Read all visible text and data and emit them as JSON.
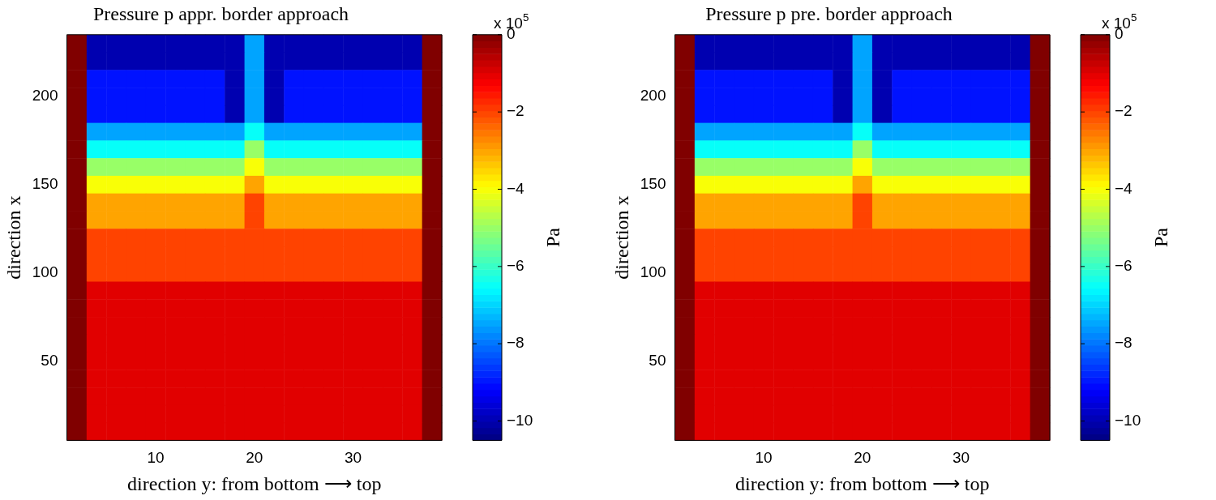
{
  "chart_data": [
    {
      "type": "heatmap",
      "title": "Pressure p appr. border approach",
      "xlabel": "direction y: from bottom ⟶ top",
      "ylabel": "direction x",
      "clabel": "Pa",
      "annotations": [
        "x 10$^{5}$"
      ],
      "categories": [
        null,
        null,
        null,
        null,
        "10",
        null,
        null,
        null,
        null,
        "20",
        null,
        null,
        null,
        null,
        "30",
        null,
        null,
        null,
        null
      ],
      "y_categories": [
        null,
        null,
        null,
        "200",
        null,
        null,
        null,
        null,
        "150",
        null,
        null,
        null,
        null,
        "100",
        null,
        null,
        null,
        null,
        "50",
        null,
        null,
        null,
        null
      ],
      "clim": [
        -10.5,
        0
      ],
      "cticks": [
        -10,
        -8,
        -6,
        -4,
        -2,
        0
      ],
      "cells": [
        [
          0,
          -10,
          -10,
          -10,
          -10,
          -10,
          -10,
          -10,
          -10,
          -7.5,
          -10,
          -10,
          -10,
          -10,
          -10,
          -10,
          -10,
          -10,
          0
        ],
        [
          0,
          -10,
          -10,
          -10,
          -10,
          -10,
          -10,
          -10,
          -10,
          -7.5,
          -10,
          -10,
          -10,
          -10,
          -10,
          -10,
          -10,
          -10,
          0
        ],
        [
          0,
          -9,
          -9,
          -9,
          -9,
          -9,
          -9,
          -9,
          -10,
          -7.5,
          -10,
          -9,
          -9,
          -9,
          -9,
          -9,
          -9,
          -9,
          0
        ],
        [
          0,
          -9,
          -9,
          -9,
          -9,
          -9,
          -9,
          -9,
          -10,
          -7.5,
          -10,
          -9,
          -9,
          -9,
          -9,
          -9,
          -9,
          -9,
          0
        ],
        [
          0,
          -9,
          -9,
          -9,
          -9,
          -9,
          -9,
          -9,
          -10,
          -7.5,
          -10,
          -9,
          -9,
          -9,
          -9,
          -9,
          -9,
          -9,
          0
        ],
        [
          0,
          -7.5,
          -7.5,
          -7.5,
          -7.5,
          -7.5,
          -7.5,
          -7.5,
          -7.5,
          -6.5,
          -7.5,
          -7.5,
          -7.5,
          -7.5,
          -7.5,
          -7.5,
          -7.5,
          -7.5,
          0
        ],
        [
          0,
          -6.5,
          -6.5,
          -6.5,
          -6.5,
          -6.5,
          -6.5,
          -6.5,
          -6.5,
          -5,
          -6.5,
          -6.5,
          -6.5,
          -6.5,
          -6.5,
          -6.5,
          -6.5,
          -6.5,
          0
        ],
        [
          0,
          -5,
          -5,
          -5,
          -5,
          -5,
          -5,
          -5,
          -5,
          -4,
          -5,
          -5,
          -5,
          -5,
          -5,
          -5,
          -5,
          -5,
          0
        ],
        [
          0,
          -4,
          -4,
          -4,
          -4,
          -4,
          -4,
          -4,
          -4,
          -3,
          -4,
          -4,
          -4,
          -4,
          -4,
          -4,
          -4,
          -4,
          0
        ],
        [
          0,
          -3,
          -3,
          -3,
          -3,
          -3,
          -3,
          -3,
          -3,
          -2,
          -3,
          -3,
          -3,
          -3,
          -3,
          -3,
          -3,
          -3,
          0
        ],
        [
          0,
          -3,
          -3,
          -3,
          -3,
          -3,
          -3,
          -3,
          -3,
          -2,
          -3,
          -3,
          -3,
          -3,
          -3,
          -3,
          -3,
          -3,
          0
        ],
        [
          0,
          -2,
          -2,
          -2,
          -2,
          -2,
          -2,
          -2,
          -2,
          -2,
          -2,
          -2,
          -2,
          -2,
          -2,
          -2,
          -2,
          -2,
          0
        ],
        [
          0,
          -2,
          -2,
          -2,
          -2,
          -2,
          -2,
          -2,
          -2,
          -2,
          -2,
          -2,
          -2,
          -2,
          -2,
          -2,
          -2,
          -2,
          0
        ],
        [
          0,
          -2,
          -2,
          -2,
          -2,
          -2,
          -2,
          -2,
          -2,
          -2,
          -2,
          -2,
          -2,
          -2,
          -2,
          -2,
          -2,
          -2,
          0
        ],
        [
          0,
          -1,
          -1,
          -1,
          -1,
          -1,
          -1,
          -1,
          -1,
          -1,
          -1,
          -1,
          -1,
          -1,
          -1,
          -1,
          -1,
          -1,
          0
        ],
        [
          0,
          -1,
          -1,
          -1,
          -1,
          -1,
          -1,
          -1,
          -1,
          -1,
          -1,
          -1,
          -1,
          -1,
          -1,
          -1,
          -1,
          -1,
          0
        ],
        [
          0,
          -1,
          -1,
          -1,
          -1,
          -1,
          -1,
          -1,
          -1,
          -1,
          -1,
          -1,
          -1,
          -1,
          -1,
          -1,
          -1,
          -1,
          0
        ],
        [
          0,
          -1,
          -1,
          -1,
          -1,
          -1,
          -1,
          -1,
          -1,
          -1,
          -1,
          -1,
          -1,
          -1,
          -1,
          -1,
          -1,
          -1,
          0
        ],
        [
          0,
          -1,
          -1,
          -1,
          -1,
          -1,
          -1,
          -1,
          -1,
          -1,
          -1,
          -1,
          -1,
          -1,
          -1,
          -1,
          -1,
          -1,
          0
        ],
        [
          0,
          -1,
          -1,
          -1,
          -1,
          -1,
          -1,
          -1,
          -1,
          -1,
          -1,
          -1,
          -1,
          -1,
          -1,
          -1,
          -1,
          -1,
          0
        ],
        [
          0,
          -1,
          -1,
          -1,
          -1,
          -1,
          -1,
          -1,
          -1,
          -1,
          -1,
          -1,
          -1,
          -1,
          -1,
          -1,
          -1,
          -1,
          0
        ],
        [
          0,
          -1,
          -1,
          -1,
          -1,
          -1,
          -1,
          -1,
          -1,
          -1,
          -1,
          -1,
          -1,
          -1,
          -1,
          -1,
          -1,
          -1,
          0
        ],
        [
          0,
          -1,
          -1,
          -1,
          -1,
          -1,
          -1,
          -1,
          -1,
          -1,
          -1,
          -1,
          -1,
          -1,
          -1,
          -1,
          -1,
          -1,
          0
        ]
      ]
    },
    {
      "type": "heatmap",
      "title": "Pressure p pre. border approach",
      "xlabel": "direction y: from bottom ⟶ top",
      "ylabel": "direction x",
      "clabel": "Pa",
      "annotations": [
        "x 10$^{5}$"
      ],
      "categories": [
        null,
        null,
        null,
        null,
        "10",
        null,
        null,
        null,
        null,
        "20",
        null,
        null,
        null,
        null,
        "30",
        null,
        null,
        null,
        null
      ],
      "y_categories": [
        null,
        null,
        null,
        "200",
        null,
        null,
        null,
        null,
        "150",
        null,
        null,
        null,
        null,
        "100",
        null,
        null,
        null,
        null,
        "50",
        null,
        null,
        null,
        null
      ],
      "clim": [
        -10.5,
        0
      ],
      "cticks": [
        -10,
        -8,
        -6,
        -4,
        -2,
        0
      ],
      "cells": [
        [
          0,
          -10,
          -10,
          -10,
          -10,
          -10,
          -10,
          -10,
          -10,
          -7.5,
          -10,
          -10,
          -10,
          -10,
          -10,
          -10,
          -10,
          -10,
          0
        ],
        [
          0,
          -10,
          -10,
          -10,
          -10,
          -10,
          -10,
          -10,
          -10,
          -7.5,
          -10,
          -10,
          -10,
          -10,
          -10,
          -10,
          -10,
          -10,
          0
        ],
        [
          0,
          -9,
          -9,
          -9,
          -9,
          -9,
          -9,
          -9,
          -10,
          -7.5,
          -10,
          -9,
          -9,
          -9,
          -9,
          -9,
          -9,
          -9,
          0
        ],
        [
          0,
          -9,
          -9,
          -9,
          -9,
          -9,
          -9,
          -9,
          -10,
          -7.5,
          -10,
          -9,
          -9,
          -9,
          -9,
          -9,
          -9,
          -9,
          0
        ],
        [
          0,
          -9,
          -9,
          -9,
          -9,
          -9,
          -9,
          -9,
          -10,
          -7.5,
          -10,
          -9,
          -9,
          -9,
          -9,
          -9,
          -9,
          -9,
          0
        ],
        [
          0,
          -7.5,
          -7.5,
          -7.5,
          -7.5,
          -7.5,
          -7.5,
          -7.5,
          -7.5,
          -6.5,
          -7.5,
          -7.5,
          -7.5,
          -7.5,
          -7.5,
          -7.5,
          -7.5,
          -7.5,
          0
        ],
        [
          0,
          -6.5,
          -6.5,
          -6.5,
          -6.5,
          -6.5,
          -6.5,
          -6.5,
          -6.5,
          -5,
          -6.5,
          -6.5,
          -6.5,
          -6.5,
          -6.5,
          -6.5,
          -6.5,
          -6.5,
          0
        ],
        [
          0,
          -5,
          -5,
          -5,
          -5,
          -5,
          -5,
          -5,
          -5,
          -4,
          -5,
          -5,
          -5,
          -5,
          -5,
          -5,
          -5,
          -5,
          0
        ],
        [
          0,
          -4,
          -4,
          -4,
          -4,
          -4,
          -4,
          -4,
          -4,
          -3,
          -4,
          -4,
          -4,
          -4,
          -4,
          -4,
          -4,
          -4,
          0
        ],
        [
          0,
          -3,
          -3,
          -3,
          -3,
          -3,
          -3,
          -3,
          -3,
          -2,
          -3,
          -3,
          -3,
          -3,
          -3,
          -3,
          -3,
          -3,
          0
        ],
        [
          0,
          -3,
          -3,
          -3,
          -3,
          -3,
          -3,
          -3,
          -3,
          -2,
          -3,
          -3,
          -3,
          -3,
          -3,
          -3,
          -3,
          -3,
          0
        ],
        [
          0,
          -2,
          -2,
          -2,
          -2,
          -2,
          -2,
          -2,
          -2,
          -2,
          -2,
          -2,
          -2,
          -2,
          -2,
          -2,
          -2,
          -2,
          0
        ],
        [
          0,
          -2,
          -2,
          -2,
          -2,
          -2,
          -2,
          -2,
          -2,
          -2,
          -2,
          -2,
          -2,
          -2,
          -2,
          -2,
          -2,
          -2,
          0
        ],
        [
          0,
          -2,
          -2,
          -2,
          -2,
          -2,
          -2,
          -2,
          -2,
          -2,
          -2,
          -2,
          -2,
          -2,
          -2,
          -2,
          -2,
          -2,
          0
        ],
        [
          0,
          -1,
          -1,
          -1,
          -1,
          -1,
          -1,
          -1,
          -1,
          -1,
          -1,
          -1,
          -1,
          -1,
          -1,
          -1,
          -1,
          -1,
          0
        ],
        [
          0,
          -1,
          -1,
          -1,
          -1,
          -1,
          -1,
          -1,
          -1,
          -1,
          -1,
          -1,
          -1,
          -1,
          -1,
          -1,
          -1,
          -1,
          0
        ],
        [
          0,
          -1,
          -1,
          -1,
          -1,
          -1,
          -1,
          -1,
          -1,
          -1,
          -1,
          -1,
          -1,
          -1,
          -1,
          -1,
          -1,
          -1,
          0
        ],
        [
          0,
          -1,
          -1,
          -1,
          -1,
          -1,
          -1,
          -1,
          -1,
          -1,
          -1,
          -1,
          -1,
          -1,
          -1,
          -1,
          -1,
          -1,
          0
        ],
        [
          0,
          -1,
          -1,
          -1,
          -1,
          -1,
          -1,
          -1,
          -1,
          -1,
          -1,
          -1,
          -1,
          -1,
          -1,
          -1,
          -1,
          -1,
          0
        ],
        [
          0,
          -1,
          -1,
          -1,
          -1,
          -1,
          -1,
          -1,
          -1,
          -1,
          -1,
          -1,
          -1,
          -1,
          -1,
          -1,
          -1,
          -1,
          0
        ],
        [
          0,
          -1,
          -1,
          -1,
          -1,
          -1,
          -1,
          -1,
          -1,
          -1,
          -1,
          -1,
          -1,
          -1,
          -1,
          -1,
          -1,
          -1,
          0
        ],
        [
          0,
          -1,
          -1,
          -1,
          -1,
          -1,
          -1,
          -1,
          -1,
          -1,
          -1,
          -1,
          -1,
          -1,
          -1,
          -1,
          -1,
          -1,
          0
        ],
        [
          0,
          -1,
          -1,
          -1,
          -1,
          -1,
          -1,
          -1,
          -1,
          -1,
          -1,
          -1,
          -1,
          -1,
          -1,
          -1,
          -1,
          -1,
          0
        ]
      ]
    }
  ]
}
